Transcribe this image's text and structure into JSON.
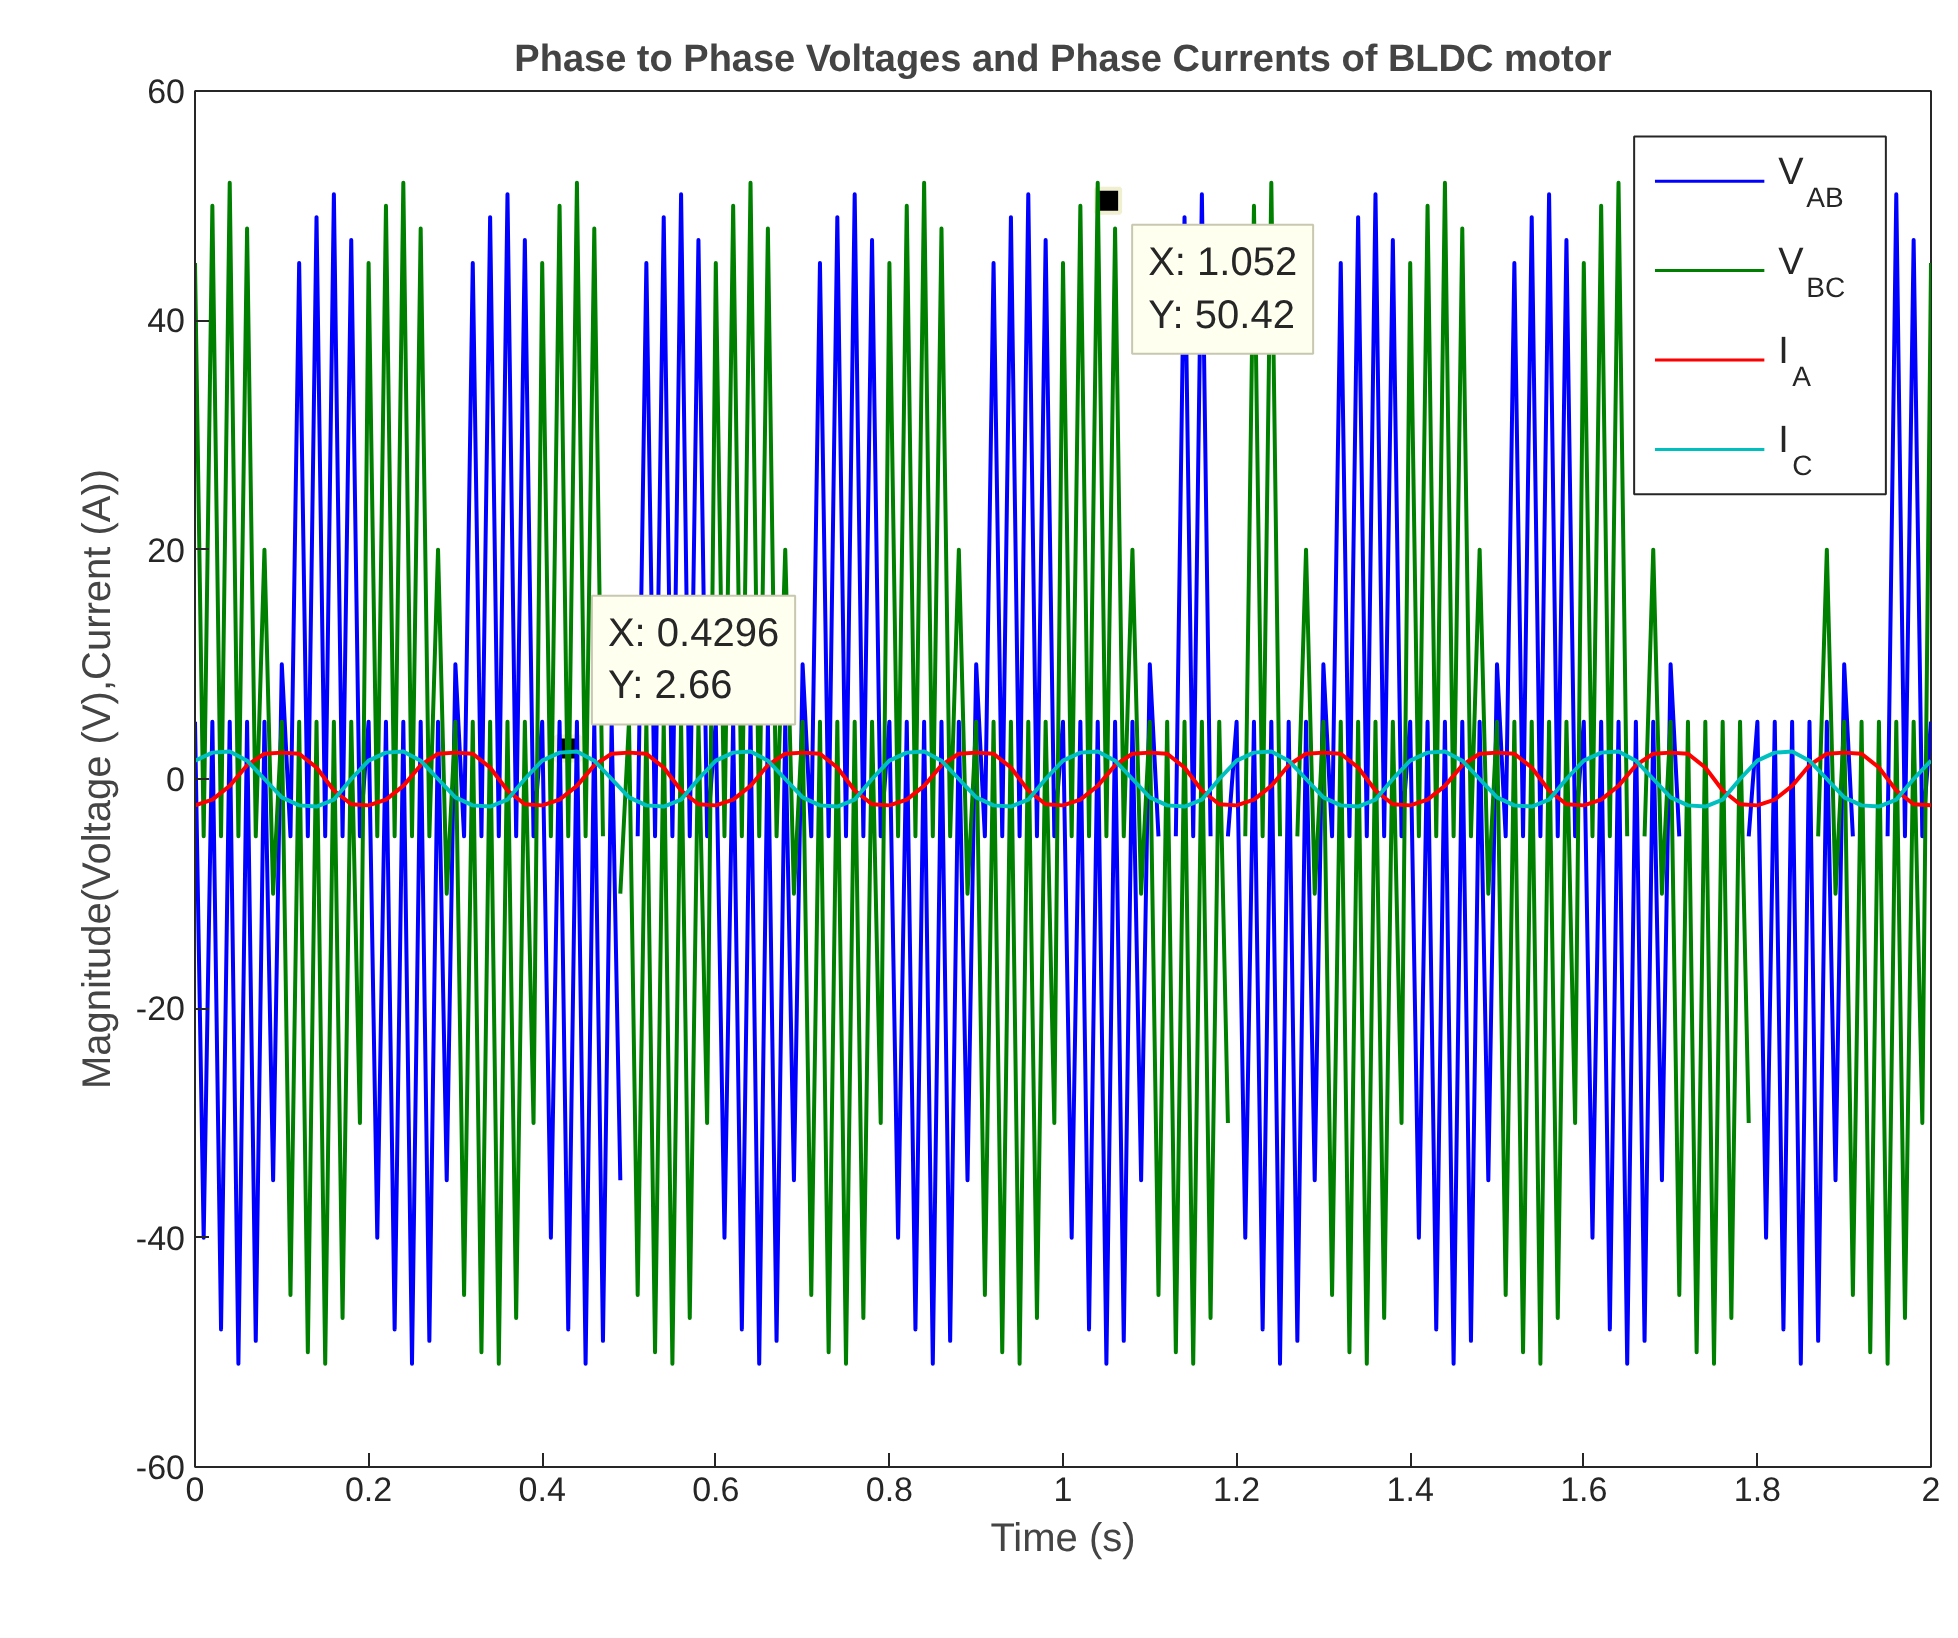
{
  "chart_data": {
    "type": "line",
    "title": "Phase to Phase Voltages and Phase Currents of BLDC motor",
    "xlabel": "Time (s)",
    "ylabel": "Magnitude(Voltage (V),Current (A))",
    "xlim": [
      0,
      2
    ],
    "ylim": [
      -60,
      60
    ],
    "xticks": [
      0,
      0.2,
      0.4,
      0.6,
      0.8,
      1,
      1.2,
      1.4,
      1.6,
      1.8,
      2
    ],
    "yticks": [
      -60,
      -40,
      -20,
      0,
      20,
      40,
      60
    ],
    "grid": false,
    "legend": "top right",
    "x": [
      0,
      0.01,
      0.02,
      0.03,
      0.04,
      0.05,
      0.06,
      0.07,
      0.08,
      0.09,
      0.1,
      0.11,
      0.12,
      0.13,
      0.14,
      0.15,
      0.16,
      0.17,
      0.18,
      0.19,
      0.2,
      0.21,
      0.22,
      0.23,
      0.24,
      0.25,
      0.26,
      0.27,
      0.28,
      0.29,
      0.3,
      0.31,
      0.32,
      0.33,
      0.34,
      0.35,
      0.36,
      0.37,
      0.38,
      0.39,
      0.4,
      0.41,
      0.42,
      0.43,
      0.44,
      0.45,
      0.46,
      0.47,
      0.48,
      0.49,
      0.5,
      0.51,
      0.52,
      0.53,
      0.54,
      0.55,
      0.56,
      0.57,
      0.58,
      0.59,
      0.6,
      0.61,
      0.62,
      0.63,
      0.64,
      0.65,
      0.66,
      0.67,
      0.68,
      0.69,
      0.7,
      0.71,
      0.72,
      0.73,
      0.74,
      0.75,
      0.76,
      0.77,
      0.78,
      0.79,
      0.8,
      0.81,
      0.82,
      0.83,
      0.84,
      0.85,
      0.86,
      0.87,
      0.88,
      0.89,
      0.9,
      0.91,
      0.92,
      0.93,
      0.94,
      0.95,
      0.96,
      0.97,
      0.98,
      0.99,
      1,
      1.01,
      1.02,
      1.03,
      1.04,
      1.05,
      1.06,
      1.07,
      1.08,
      1.09,
      1.1,
      1.11,
      1.12,
      1.13,
      1.14,
      1.15,
      1.16,
      1.17,
      1.18,
      1.19,
      1.2,
      1.21,
      1.22,
      1.23,
      1.24,
      1.25,
      1.26,
      1.27,
      1.28,
      1.29,
      1.3,
      1.31,
      1.32,
      1.33,
      1.34,
      1.35,
      1.36,
      1.37,
      1.38,
      1.39,
      1.4,
      1.41,
      1.42,
      1.43,
      1.44,
      1.45,
      1.46,
      1.47,
      1.48,
      1.49,
      1.5,
      1.51,
      1.52,
      1.53,
      1.54,
      1.55,
      1.56,
      1.57,
      1.58,
      1.59,
      1.6,
      1.61,
      1.62,
      1.63,
      1.64,
      1.65,
      1.66,
      1.67,
      1.68,
      1.69,
      1.7,
      1.71,
      1.72,
      1.73,
      1.74,
      1.75,
      1.76,
      1.77,
      1.78,
      1.79,
      1.8,
      1.81,
      1.82,
      1.83,
      1.84,
      1.85,
      1.86,
      1.87,
      1.88,
      1.89,
      1.9,
      1.91,
      1.92,
      1.93,
      1.94,
      1.95,
      1.96,
      1.97,
      1.98,
      1.99,
      2
    ],
    "series": [
      {
        "name": "V$_{AB}$",
        "color": "#0000ff",
        "values": [
          5,
          -40,
          5,
          -48,
          5,
          -51,
          5,
          -49,
          5,
          -35,
          10,
          -5,
          45,
          -5,
          49,
          -5,
          51,
          -5,
          47,
          -5,
          5,
          -40,
          5,
          -48,
          5,
          -51,
          5,
          -49,
          5,
          -35,
          10,
          -5,
          45,
          -5,
          49,
          -5,
          51,
          -5,
          47,
          -5,
          5,
          -40,
          5,
          -48,
          5,
          -51,
          5,
          -49,
          5,
          -35,
          null,
          -5,
          45,
          -5,
          49,
          -5,
          51,
          -5,
          47,
          -5,
          5,
          -40,
          5,
          -48,
          5,
          -51,
          5,
          -49,
          5,
          -35,
          10,
          -5,
          45,
          -5,
          49,
          -5,
          51,
          -5,
          47,
          -5,
          5,
          -40,
          5,
          -48,
          5,
          -51,
          5,
          -49,
          5,
          -35,
          10,
          -5,
          45,
          -5,
          49,
          -5,
          51,
          -5,
          47,
          -5,
          5,
          -40,
          5,
          -48,
          5,
          -51,
          5,
          -49,
          5,
          -35,
          10,
          -5,
          null,
          -5,
          49,
          -5,
          51,
          -5,
          null,
          -5,
          5,
          -40,
          5,
          -48,
          5,
          -51,
          5,
          -49,
          5,
          -35,
          10,
          -5,
          45,
          -5,
          49,
          -5,
          51,
          -5,
          47,
          -5,
          5,
          -40,
          5,
          -48,
          5,
          -51,
          5,
          -49,
          5,
          -35,
          10,
          -5,
          45,
          -5,
          49,
          -5,
          51,
          -5,
          47,
          -5,
          5,
          -40,
          5,
          -48,
          5,
          -51,
          5,
          -49,
          5,
          -35,
          10,
          -5,
          null,
          null,
          null,
          null,
          null,
          null,
          null,
          -5,
          5,
          -40,
          5,
          -48,
          5,
          -51,
          5,
          -49,
          5,
          -35,
          10,
          -5,
          null,
          null,
          null,
          -5,
          51,
          -5,
          47,
          -5,
          5
        ]
      },
      {
        "name": "V$_{BC}$",
        "color": "#008000",
        "values": [
          45,
          -5,
          50,
          -5,
          52,
          -5,
          48,
          -5,
          20,
          -10,
          5,
          -45,
          5,
          -50,
          5,
          -51,
          5,
          -47,
          5,
          -30,
          45,
          -5,
          50,
          -5,
          52,
          -5,
          48,
          -5,
          20,
          -10,
          5,
          -45,
          5,
          -50,
          5,
          -51,
          5,
          -47,
          5,
          -30,
          45,
          -5,
          50,
          -5,
          52,
          -5,
          48,
          -5,
          null,
          -10,
          5,
          -45,
          5,
          -50,
          5,
          -51,
          5,
          -47,
          5,
          -30,
          45,
          -5,
          50,
          -5,
          52,
          -5,
          48,
          -5,
          20,
          -10,
          5,
          -45,
          5,
          -50,
          5,
          -51,
          5,
          -47,
          5,
          -30,
          45,
          -5,
          50,
          -5,
          52,
          -5,
          48,
          -5,
          20,
          -10,
          5,
          -45,
          5,
          -50,
          5,
          -51,
          5,
          -47,
          5,
          -30,
          45,
          -5,
          50,
          -5,
          52,
          -5,
          48,
          -5,
          20,
          -10,
          5,
          -45,
          5,
          -50,
          5,
          -51,
          5,
          -47,
          5,
          -30,
          null,
          -5,
          50,
          -5,
          52,
          -5,
          null,
          -5,
          20,
          -10,
          5,
          -45,
          5,
          -50,
          5,
          -51,
          5,
          -47,
          5,
          -30,
          45,
          -5,
          50,
          -5,
          52,
          -5,
          48,
          -5,
          20,
          -10,
          5,
          -45,
          5,
          -50,
          5,
          -51,
          5,
          -47,
          5,
          -30,
          45,
          -5,
          50,
          -5,
          52,
          -5,
          null,
          -5,
          20,
          -10,
          5,
          -45,
          5,
          -50,
          5,
          -51,
          5,
          -47,
          5,
          -30,
          null,
          null,
          null,
          null,
          null,
          null,
          null,
          -5,
          20,
          -10,
          5,
          -45,
          5,
          -50,
          5,
          -51,
          5,
          -47,
          5,
          -30,
          45
        ]
      },
      {
        "name": "I$_{A}$",
        "color": "#ff0000",
        "x": [
          0,
          0.02,
          0.04,
          0.06,
          0.08,
          0.1,
          0.12,
          0.14,
          0.16,
          0.18,
          0.2,
          0.22,
          0.24,
          0.26,
          0.28,
          0.3,
          0.32,
          0.34,
          0.36,
          0.38,
          0.4,
          0.42,
          0.44,
          0.46,
          0.48,
          0.5,
          0.52,
          0.54,
          0.56,
          0.58,
          0.6,
          0.62,
          0.64,
          0.66,
          0.68,
          0.7,
          0.72,
          0.74,
          0.76,
          0.78,
          0.8,
          0.82,
          0.84,
          0.86,
          0.88,
          0.9,
          0.92,
          0.94,
          0.96,
          0.98,
          1,
          1.02,
          1.04,
          1.06,
          1.08,
          1.1,
          1.12,
          1.14,
          1.16,
          1.18,
          1.2,
          1.22,
          1.24,
          1.26,
          1.28,
          1.3,
          1.32,
          1.34,
          1.36,
          1.38,
          1.4,
          1.42,
          1.44,
          1.46,
          1.48,
          1.5,
          1.52,
          1.54,
          1.56,
          1.58,
          1.6,
          1.62,
          1.64,
          1.66,
          1.68,
          1.7,
          1.72,
          1.74,
          1.76,
          1.78,
          1.8,
          1.82,
          1.84,
          1.86,
          1.88,
          1.9,
          1.92,
          1.94,
          1.96,
          1.98,
          2
        ],
        "values": [
          -2.3,
          -1.8,
          -0.6,
          1.2,
          2.2,
          2.3,
          2.2,
          1.0,
          -1.0,
          -2.2,
          -2.3,
          -1.8,
          -0.6,
          1.2,
          2.2,
          2.3,
          2.2,
          1.0,
          -1.0,
          -2.2,
          -2.3,
          -1.8,
          -0.6,
          1.2,
          2.2,
          2.3,
          2.2,
          1.0,
          -1.0,
          -2.2,
          -2.3,
          -1.8,
          -0.6,
          1.2,
          2.2,
          2.3,
          2.2,
          1.0,
          -1.0,
          -2.2,
          -2.3,
          -1.8,
          -0.6,
          1.2,
          2.2,
          2.3,
          2.2,
          1.0,
          -1.0,
          -2.2,
          -2.3,
          -1.8,
          -0.6,
          1.2,
          2.2,
          2.3,
          2.2,
          1.0,
          -1.0,
          -2.2,
          -2.3,
          -1.8,
          -0.6,
          1.2,
          2.2,
          2.3,
          2.2,
          1.0,
          -1.0,
          -2.2,
          -2.3,
          -1.8,
          -0.6,
          1.2,
          2.2,
          2.3,
          2.2,
          1.0,
          -1.0,
          -2.2,
          -2.3,
          -1.8,
          -0.6,
          1.2,
          2.2,
          2.3,
          2.2,
          1.0,
          -1.0,
          -2.2,
          -2.3,
          -1.8,
          -0.6,
          1.2,
          2.2,
          2.3,
          2.2,
          1.0,
          -1.0,
          -2.2,
          -2.3
        ]
      },
      {
        "name": "I$_{C}$",
        "color": "#00bfbf",
        "x": [
          0,
          0.02,
          0.04,
          0.06,
          0.08,
          0.1,
          0.12,
          0.14,
          0.16,
          0.18,
          0.2,
          0.22,
          0.24,
          0.26,
          0.28,
          0.3,
          0.32,
          0.34,
          0.36,
          0.38,
          0.4,
          0.42,
          0.44,
          0.46,
          0.48,
          0.5,
          0.52,
          0.54,
          0.56,
          0.58,
          0.6,
          0.62,
          0.64,
          0.66,
          0.68,
          0.7,
          0.72,
          0.74,
          0.76,
          0.78,
          0.8,
          0.82,
          0.84,
          0.86,
          0.88,
          0.9,
          0.92,
          0.94,
          0.96,
          0.98,
          1,
          1.02,
          1.04,
          1.06,
          1.08,
          1.1,
          1.12,
          1.14,
          1.16,
          1.18,
          1.2,
          1.22,
          1.24,
          1.26,
          1.28,
          1.3,
          1.32,
          1.34,
          1.36,
          1.38,
          1.4,
          1.42,
          1.44,
          1.46,
          1.48,
          1.5,
          1.52,
          1.54,
          1.56,
          1.58,
          1.6,
          1.62,
          1.64,
          1.66,
          1.68,
          1.7,
          1.72,
          1.74,
          1.76,
          1.78,
          1.8,
          1.82,
          1.84,
          1.86,
          1.88,
          1.9,
          1.92,
          1.94,
          1.96,
          1.98,
          2
        ],
        "values": [
          1.6,
          2.3,
          2.4,
          1.6,
          0.0,
          -1.6,
          -2.3,
          -2.4,
          -1.8,
          0.0,
          1.6,
          2.3,
          2.4,
          1.6,
          0.0,
          -1.6,
          -2.3,
          -2.4,
          -1.8,
          0.0,
          1.6,
          2.3,
          2.4,
          1.6,
          0.0,
          -1.6,
          -2.3,
          -2.4,
          -1.8,
          0.0,
          1.6,
          2.3,
          2.4,
          1.6,
          0.0,
          -1.6,
          -2.3,
          -2.4,
          -1.8,
          0.0,
          1.6,
          2.3,
          2.4,
          1.6,
          0.0,
          -1.6,
          -2.3,
          -2.4,
          -1.8,
          0.0,
          1.6,
          2.3,
          2.4,
          1.6,
          0.0,
          -1.6,
          -2.3,
          -2.4,
          -1.8,
          0.0,
          1.6,
          2.3,
          2.4,
          1.6,
          0.0,
          -1.6,
          -2.3,
          -2.4,
          -1.8,
          0.0,
          1.6,
          2.3,
          2.4,
          1.6,
          0.0,
          -1.6,
          -2.3,
          -2.4,
          -1.8,
          0.0,
          1.6,
          2.3,
          2.4,
          1.6,
          0.0,
          -1.6,
          -2.3,
          -2.4,
          -1.8,
          0.0,
          1.6,
          2.3,
          2.4,
          1.6,
          0.0,
          -1.6,
          -2.3,
          -2.4,
          -1.8,
          0.0,
          1.6
        ]
      }
    ],
    "annotations": [
      {
        "text": "X: 1.052\nY: 50.42",
        "x": 1.052,
        "y": 50.42
      },
      {
        "text": "X: 0.4296\nY: 2.66",
        "x": 0.4296,
        "y": 2.66
      }
    ]
  }
}
